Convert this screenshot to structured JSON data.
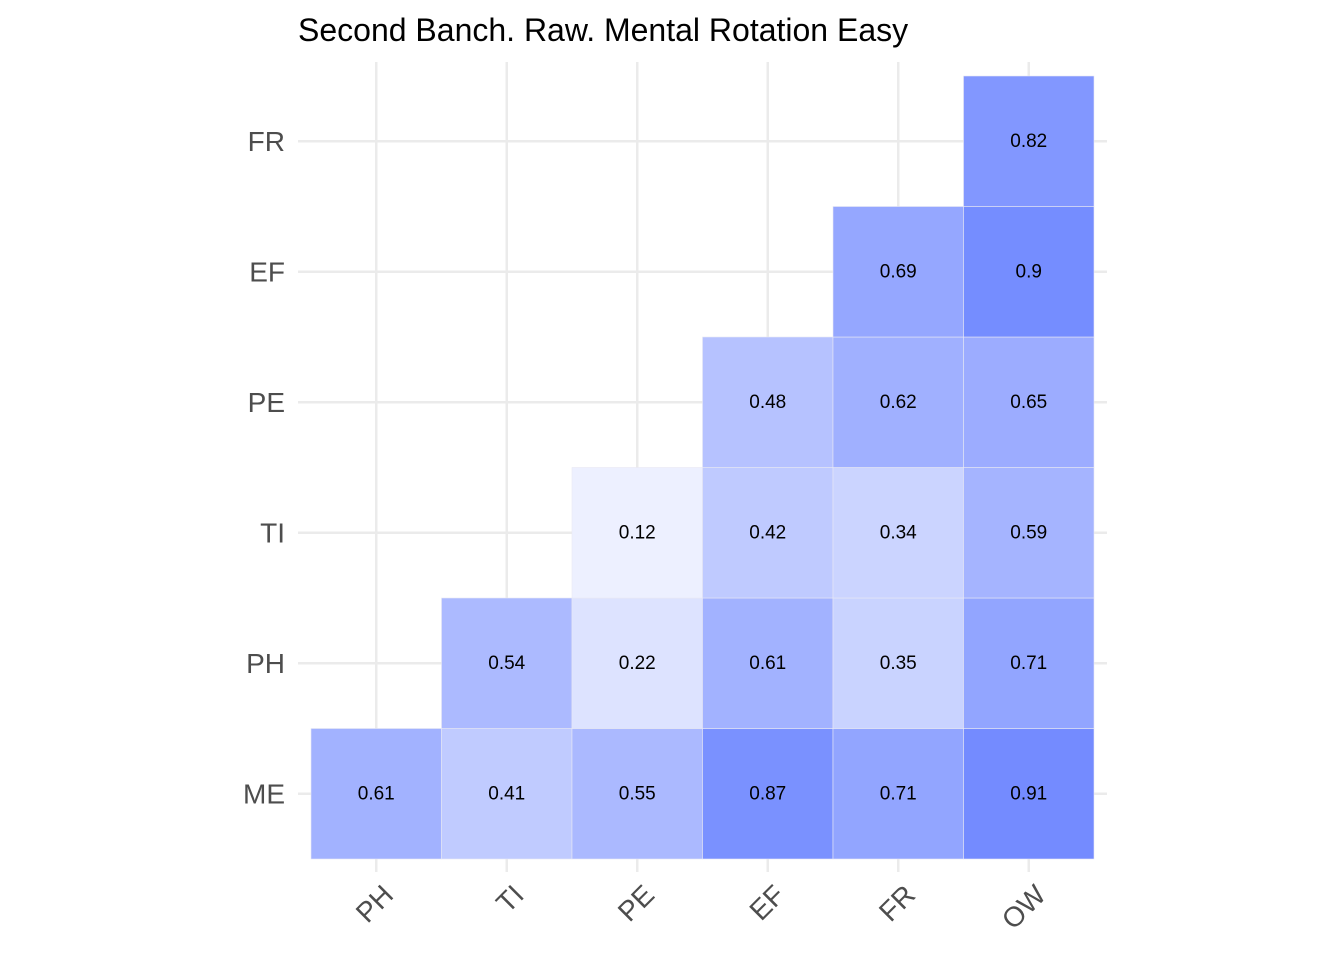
{
  "chart_data": {
    "type": "heatmap",
    "title": "Second Banch. Raw. Mental Rotation Easy",
    "xlabel": "",
    "ylabel": "",
    "x_categories": [
      "PH",
      "TI",
      "PE",
      "EF",
      "FR",
      "OW"
    ],
    "y_categories": [
      "ME",
      "PH",
      "TI",
      "PE",
      "EF",
      "FR"
    ],
    "cells": [
      {
        "x": "PH",
        "y": "ME",
        "value": 0.61
      },
      {
        "x": "TI",
        "y": "ME",
        "value": 0.41
      },
      {
        "x": "PE",
        "y": "ME",
        "value": 0.55
      },
      {
        "x": "EF",
        "y": "ME",
        "value": 0.87
      },
      {
        "x": "FR",
        "y": "ME",
        "value": 0.71
      },
      {
        "x": "OW",
        "y": "ME",
        "value": 0.91
      },
      {
        "x": "TI",
        "y": "PH",
        "value": 0.54
      },
      {
        "x": "PE",
        "y": "PH",
        "value": 0.22
      },
      {
        "x": "EF",
        "y": "PH",
        "value": 0.61
      },
      {
        "x": "FR",
        "y": "PH",
        "value": 0.35
      },
      {
        "x": "OW",
        "y": "PH",
        "value": 0.71
      },
      {
        "x": "PE",
        "y": "TI",
        "value": 0.12
      },
      {
        "x": "EF",
        "y": "TI",
        "value": 0.42
      },
      {
        "x": "FR",
        "y": "TI",
        "value": 0.34
      },
      {
        "x": "OW",
        "y": "TI",
        "value": 0.59
      },
      {
        "x": "EF",
        "y": "PE",
        "value": 0.48
      },
      {
        "x": "FR",
        "y": "PE",
        "value": 0.62
      },
      {
        "x": "OW",
        "y": "PE",
        "value": 0.65
      },
      {
        "x": "FR",
        "y": "EF",
        "value": 0.69
      },
      {
        "x": "OW",
        "y": "EF",
        "value": 0.9
      },
      {
        "x": "OW",
        "y": "FR",
        "value": 0.82
      }
    ],
    "color_scale": {
      "low": "#ffffff",
      "high": "#6680ff",
      "domain": [
        0,
        1
      ]
    },
    "grid": true,
    "legend": "none"
  }
}
